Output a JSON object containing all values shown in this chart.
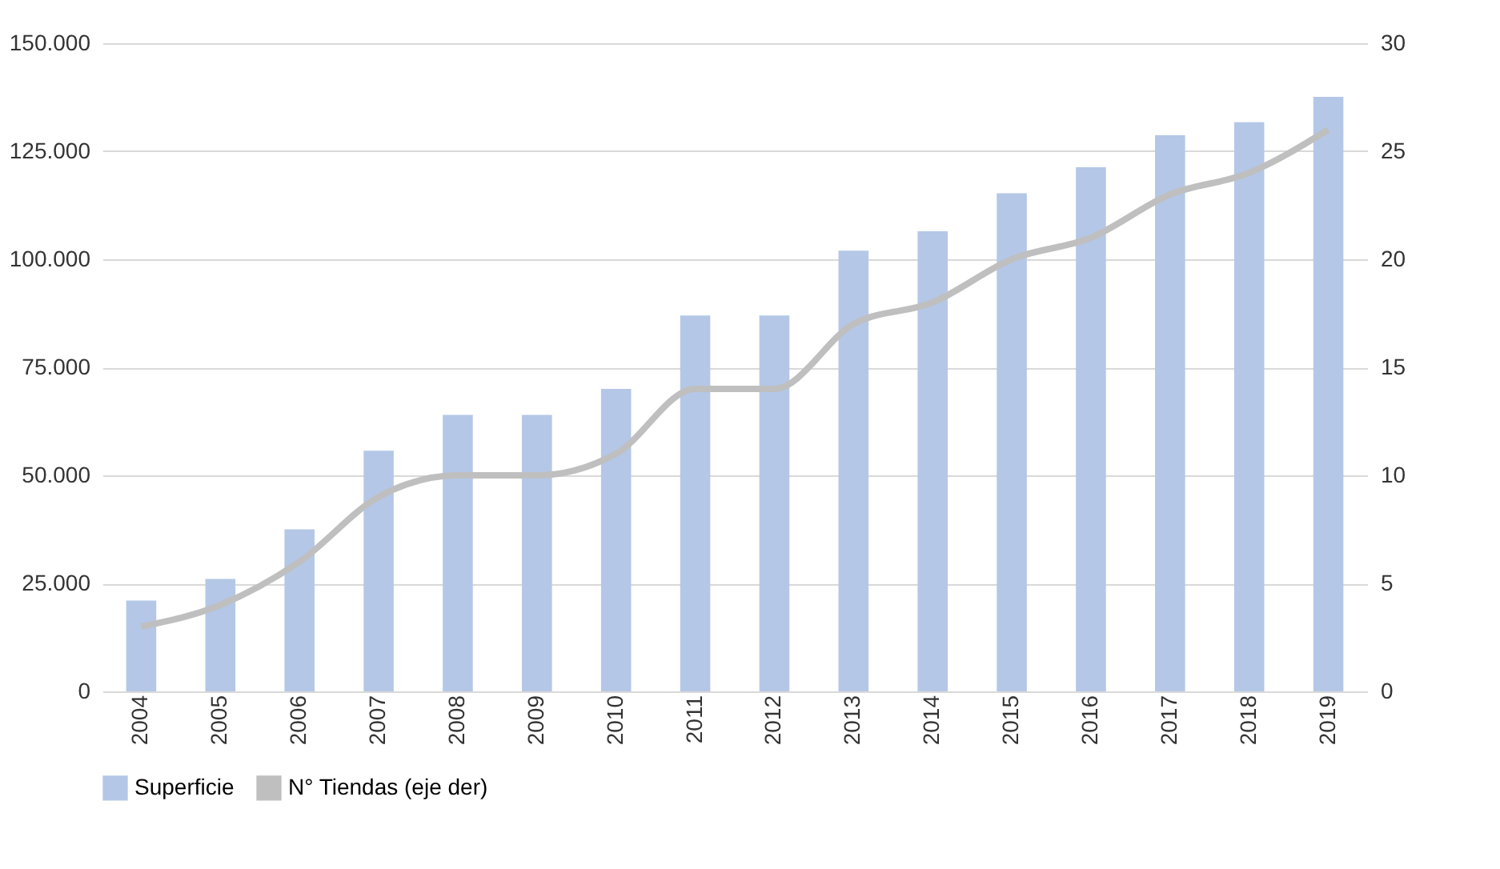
{
  "chart_data": {
    "type": "bar",
    "categories": [
      "2004",
      "2005",
      "2006",
      "2007",
      "2008",
      "2009",
      "2010",
      "2011",
      "2012",
      "2013",
      "2014",
      "2015",
      "2016",
      "2017",
      "2018",
      "2019"
    ],
    "series": [
      {
        "name": "Superficie",
        "color": "#b4c7e7",
        "values": [
          21000,
          26000,
          37500,
          55700,
          64000,
          64000,
          70000,
          87000,
          87000,
          102000,
          106500,
          115300,
          121300,
          128700,
          131700,
          137600
        ]
      },
      {
        "name": "N° Tiendas (eje der)",
        "type": "line",
        "axis": "y2",
        "color": "#bfbfbf",
        "values": [
          3,
          4,
          6,
          9,
          10,
          10,
          11,
          14,
          14,
          17,
          18,
          20,
          21,
          23,
          24,
          26
        ]
      }
    ],
    "ylim": [
      0,
      150000
    ],
    "yticks": [
      {
        "value": 0,
        "label": "0"
      },
      {
        "value": 25000,
        "label": "25.000"
      },
      {
        "value": 50000,
        "label": "50.000"
      },
      {
        "value": 75000,
        "label": "75.000"
      },
      {
        "value": 100000,
        "label": "100.000"
      },
      {
        "value": 125000,
        "label": "125.000"
      },
      {
        "value": 150000,
        "label": "150.000"
      }
    ],
    "y2lim": [
      0,
      30
    ],
    "y2ticks": [
      0,
      5,
      10,
      15,
      20,
      25,
      30
    ],
    "grid": "y",
    "legend": "bottom"
  }
}
